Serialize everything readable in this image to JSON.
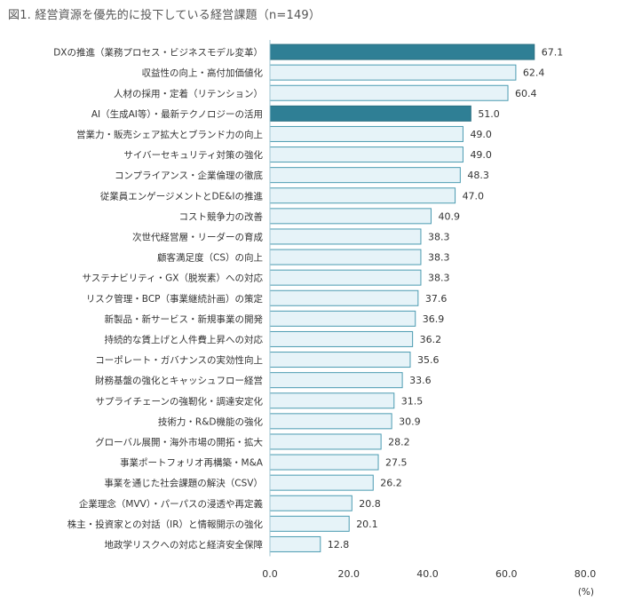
{
  "chart_data": {
    "type": "bar",
    "orientation": "horizontal",
    "title": "図1. 経営資源を優先的に投下している経営課題（n=149）",
    "categories": [
      "DXの推進（業務プロセス・ビジネスモデル変革）",
      "収益性の向上・高付加価値化",
      "人材の採用・定着（リテンション）",
      "AI（生成AI等）・最新テクノロジーの活用",
      "営業力・販売シェア拡大とブランド力の向上",
      "サイバーセキュリティ対策の強化",
      "コンプライアンス・企業倫理の徹底",
      "従業員エンゲージメントとDE&Iの推進",
      "コスト競争力の改善",
      "次世代経営層・リーダーの育成",
      "顧客満足度（CS）の向上",
      "サステナビリティ・GX（脱炭素）への対応",
      "リスク管理・BCP（事業継続計画）の策定",
      "新製品・新サービス・新規事業の開発",
      "持続的な賃上げと人件費上昇への対応",
      "コーポレート・ガバナンスの実効性向上",
      "財務基盤の強化とキャッシュフロー経営",
      "サプライチェーンの強靭化・調達安定化",
      "技術力・R&D機能の強化",
      "グローバル展開・海外市場の開拓・拡大",
      "事業ポートフォリオ再構築・M&A",
      "事業を通じた社会課題の解決（CSV）",
      "企業理念（MVV）・パーパスの浸透や再定義",
      "株主・投資家との対話（IR）と情報開示の強化",
      "地政学リスクへの対応と経済安全保障"
    ],
    "values": [
      67.1,
      62.4,
      60.4,
      51.0,
      49.0,
      49.0,
      48.3,
      47.0,
      40.9,
      38.3,
      38.3,
      38.3,
      37.6,
      36.9,
      36.2,
      35.6,
      33.6,
      31.5,
      30.9,
      28.2,
      27.5,
      26.2,
      20.8,
      20.1,
      12.8
    ],
    "value_labels": [
      "67.1",
      "62.4",
      "60.4",
      "51.0",
      "49.0",
      "49.0",
      "48.3",
      "47.0",
      "40.9",
      "38.3",
      "38.3",
      "38.3",
      "37.6",
      "36.9",
      "36.2",
      "35.6",
      "33.6",
      "31.5",
      "30.9",
      "28.2",
      "27.5",
      "26.2",
      "20.8",
      "20.1",
      "12.8"
    ],
    "highlighted": [
      true,
      false,
      false,
      true,
      false,
      false,
      false,
      false,
      false,
      false,
      false,
      false,
      false,
      false,
      false,
      false,
      false,
      false,
      false,
      false,
      false,
      false,
      false,
      false,
      false
    ],
    "xlim": [
      0,
      80
    ],
    "xticks": [
      "0.0",
      "20.0",
      "40.0",
      "60.0",
      "80.0"
    ],
    "unit_label": "(%)",
    "grid": false,
    "colors": {
      "highlight_fill": "#2f7f95",
      "highlight_stroke": "#2a6f82",
      "normal_fill": "#e6f3f8",
      "normal_stroke": "#4b9bb1"
    }
  }
}
